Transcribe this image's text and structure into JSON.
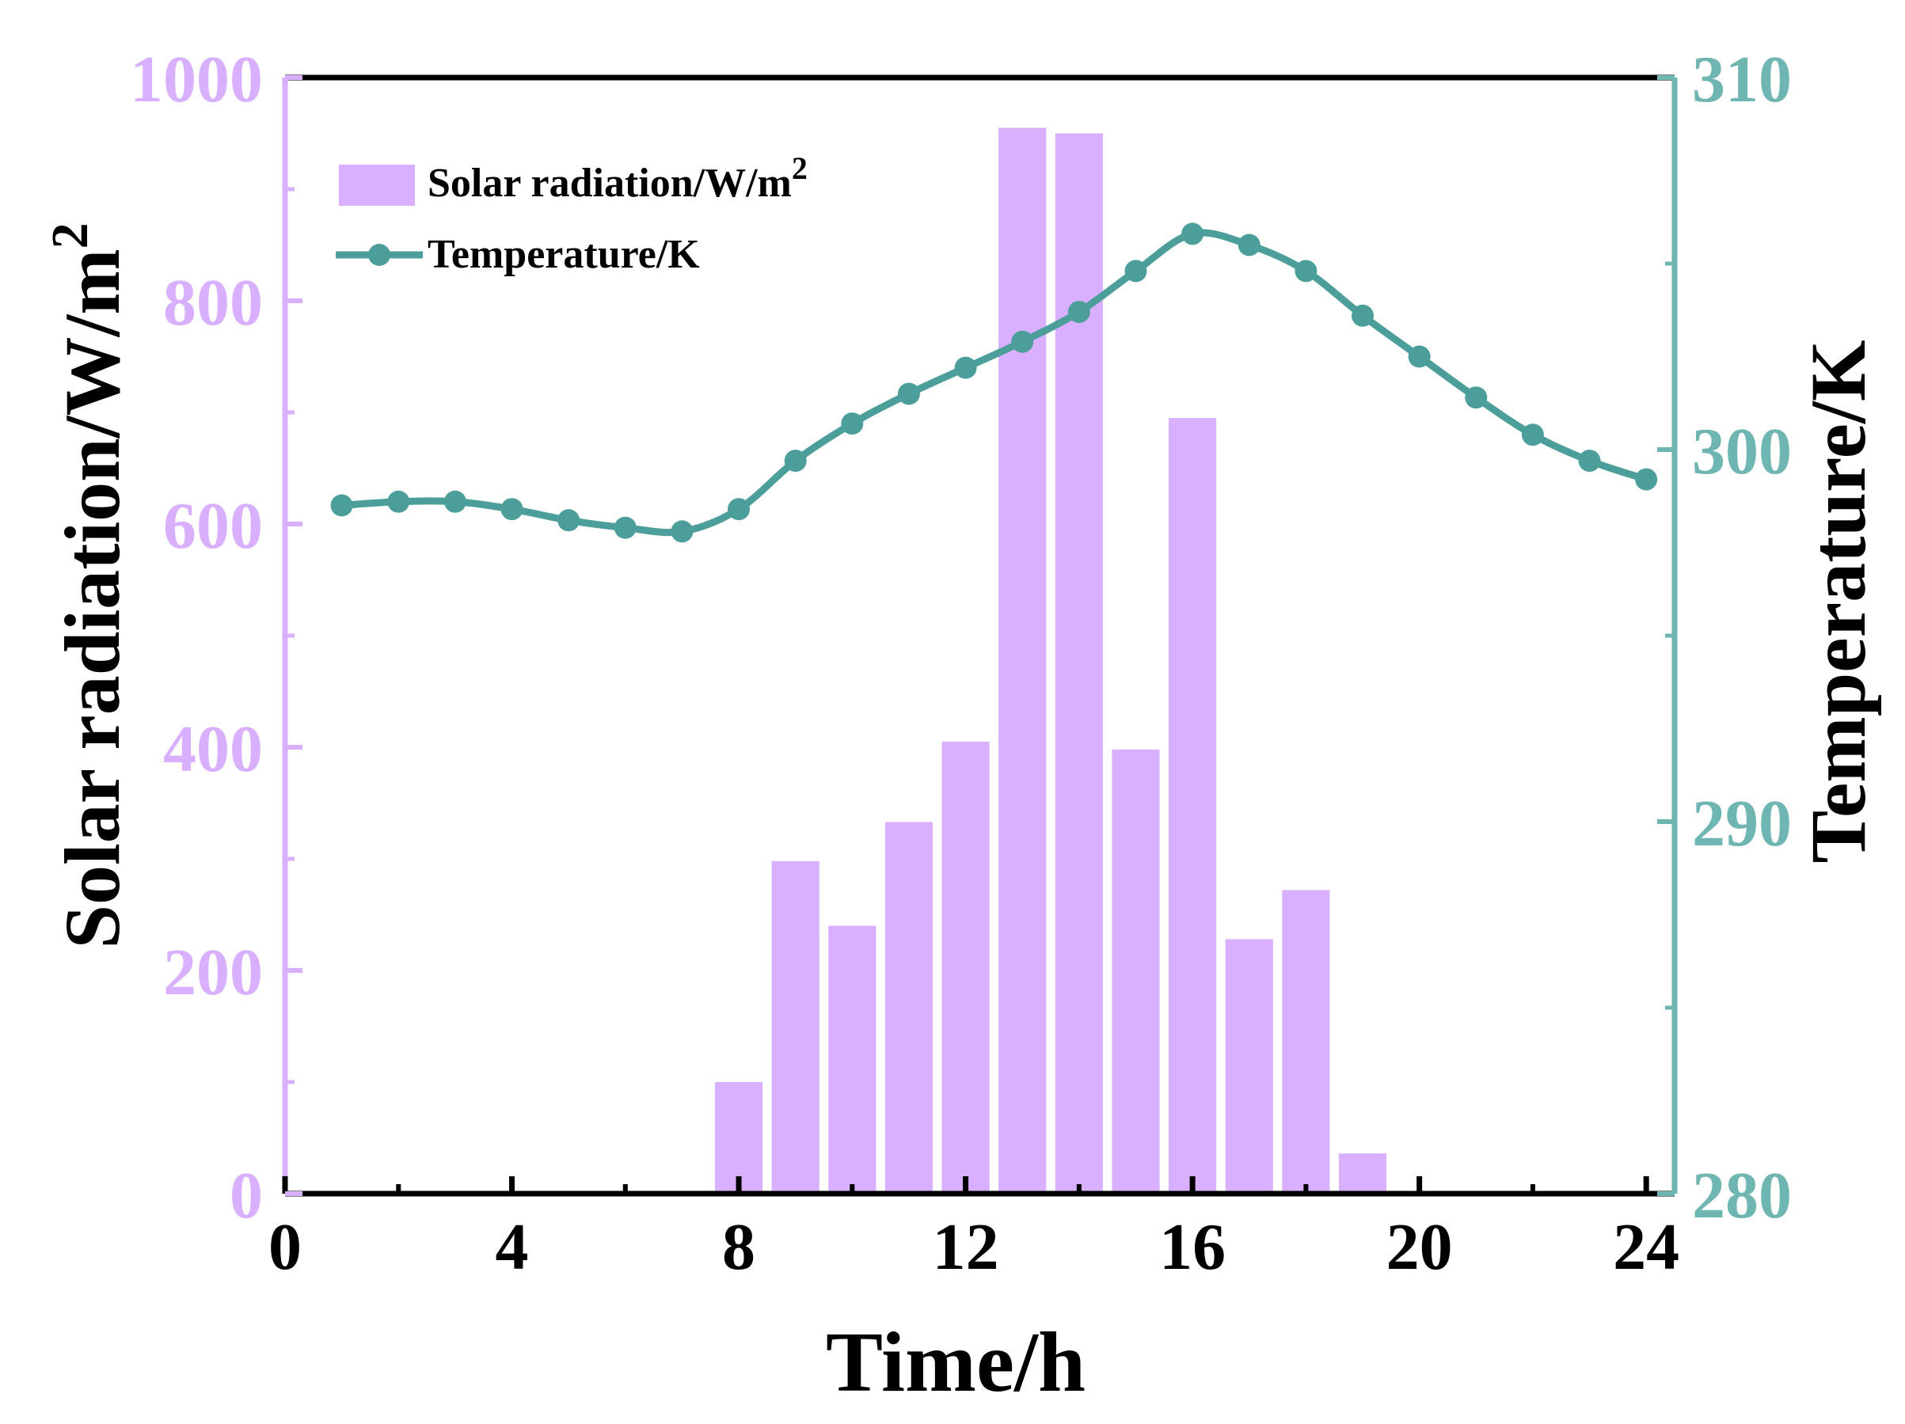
{
  "colors": {
    "bars": "#D8B0FF",
    "left_axis": "#D8B0FF",
    "left_tick_text": "#D8B0FF",
    "line": "#4C9E9B",
    "right_axis": "#6FB5B1",
    "right_tick_text": "#6FB5B1",
    "frame": "#000000",
    "text": "#000000"
  },
  "chart_data": {
    "type": "bar+line",
    "xlabel": "Time/h",
    "ylabel_left": "Solar radiation/W/m",
    "ylabel_left_sup": "2",
    "ylabel_right": "Temperature/K",
    "xlim": [
      0,
      24.5
    ],
    "ylim_left": [
      0,
      1000
    ],
    "ylim_right": [
      280,
      310
    ],
    "x_ticks": [
      0,
      4,
      8,
      12,
      16,
      20,
      24
    ],
    "x_tick_labels": [
      "0",
      "4",
      "8",
      "12",
      "16",
      "20",
      "24"
    ],
    "x_minor_ticks": [
      2,
      6,
      10,
      14,
      18,
      22
    ],
    "y_left_ticks": [
      0,
      200,
      400,
      600,
      800,
      1000
    ],
    "y_left_tick_labels": [
      "0",
      "200",
      "400",
      "600",
      "800",
      "1000"
    ],
    "y_left_minor_ticks": [
      100,
      300,
      500,
      700,
      900
    ],
    "y_right_ticks": [
      280,
      290,
      300,
      310
    ],
    "y_right_tick_labels": [
      "280",
      "290",
      "300",
      "310"
    ],
    "y_right_minor_ticks": [
      285,
      295,
      305
    ],
    "legend": {
      "position": "top-left",
      "items": [
        {
          "label": "Solar radiation/W/m",
          "sup": "2",
          "kind": "bar"
        },
        {
          "label": "Temperature/K",
          "kind": "line"
        }
      ]
    },
    "series": [
      {
        "name": "Solar radiation/W/m2",
        "type": "bar",
        "axis": "left",
        "x": [
          8,
          9,
          10,
          11,
          12,
          13,
          14,
          15,
          16,
          17,
          18,
          19
        ],
        "values": [
          100,
          298,
          240,
          333,
          405,
          955,
          950,
          398,
          695,
          228,
          272,
          36
        ]
      },
      {
        "name": "Temperature/K",
        "type": "line",
        "axis": "right",
        "x": [
          1,
          2,
          3,
          4,
          5,
          6,
          7,
          8,
          9,
          10,
          11,
          12,
          13,
          14,
          15,
          16,
          17,
          18,
          19,
          20,
          21,
          22,
          23,
          24
        ],
        "values": [
          298.5,
          298.6,
          298.6,
          298.4,
          298.1,
          297.9,
          297.8,
          298.4,
          299.7,
          300.7,
          301.5,
          302.2,
          302.9,
          303.7,
          304.8,
          305.8,
          305.5,
          304.8,
          303.6,
          302.5,
          301.4,
          300.4,
          299.7,
          299.2
        ]
      }
    ]
  }
}
